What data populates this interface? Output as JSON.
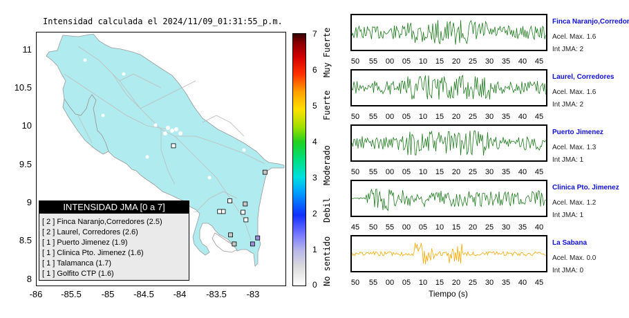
{
  "map": {
    "title": "Intensidad calculada el 2024/11/09_01:31:55_p.m.",
    "y_ticks": [
      "11",
      "10.5",
      "10",
      "9.5",
      "9",
      "8.5",
      "8"
    ],
    "x_ticks": [
      "-86",
      "-85.5",
      "-85",
      "-84.5",
      "-84",
      "-83.5",
      "-83"
    ],
    "land_color": "#b0ecef",
    "legend": {
      "title": "INTENSIDAD JMA [0 a 7]",
      "items": [
        "[ 2 ] Finca Naranjo,Corredores (2.5)",
        "[ 2 ] Laurel, Corredores (2.6)",
        "[ 1 ] Puerto Jimenez (1.9)",
        "[ 1 ] Clinica Pto. Jimenez (1.6)",
        "[ 1 ] Talamanca (1.7)",
        "[ 1 ] Golfito CTP (1.6)"
      ]
    },
    "stations": [
      {
        "lon": -83.05,
        "lat": 8.55,
        "int": 2
      },
      {
        "lon": -82.98,
        "lat": 8.63,
        "int": 2
      },
      {
        "lon": -83.3,
        "lat": 8.55,
        "int": 1
      },
      {
        "lon": -83.35,
        "lat": 8.67,
        "int": 1
      },
      {
        "lon": -82.88,
        "lat": 9.5,
        "int": 1
      },
      {
        "lon": -83.15,
        "lat": 9.08,
        "int": 1
      },
      {
        "lon": -83.45,
        "lat": 8.98,
        "int": 0
      },
      {
        "lon": -83.5,
        "lat": 8.98,
        "int": 0
      },
      {
        "lon": -83.18,
        "lat": 8.97,
        "int": 0
      },
      {
        "lon": -83.14,
        "lat": 8.87,
        "int": 0
      },
      {
        "lon": -83.36,
        "lat": 9.12,
        "int": 0
      },
      {
        "lon": -84.13,
        "lat": 9.85,
        "int": 0
      }
    ]
  },
  "colorbar": {
    "ticks": [
      "7",
      "6",
      "5",
      "4",
      "3",
      "2",
      "1",
      "0"
    ],
    "labels": [
      "Muy Fuerte",
      "Fuerte",
      "Moderado",
      "Debil",
      "No sentido"
    ]
  },
  "traces": {
    "xlabel": "Tiempo (s)",
    "panels": [
      {
        "name": "Finca Naranjo,Corredor",
        "acel": "Acel. Max. 1.6",
        "int": "Int JMA: 2",
        "color": "#1e7a1e",
        "ticks": [
          "50",
          "55",
          "00",
          "05",
          "10",
          "15",
          "20",
          "25",
          "30",
          "35",
          "40",
          "45"
        ]
      },
      {
        "name": "Laurel, Corredores",
        "acel": "Acel. Max. 1.6",
        "int": "Int JMA: 2",
        "color": "#1e7a1e",
        "ticks": [
          "50",
          "55",
          "00",
          "05",
          "10",
          "15",
          "20",
          "25",
          "30",
          "35",
          "40",
          "45"
        ]
      },
      {
        "name": "Puerto Jimenez",
        "acel": "Acel. Max. 1.3",
        "int": "Int JMA: 1",
        "color": "#1e7a1e",
        "ticks": [
          "50",
          "55",
          "00",
          "05",
          "10",
          "15",
          "20",
          "25",
          "30",
          "35",
          "40",
          "45"
        ]
      },
      {
        "name": "Clinica Pto. Jimenez",
        "acel": "Acel. Max. 1.2",
        "int": "Int JMA: 1",
        "color": "#1e7a1e",
        "ticks": [
          "45",
          "50",
          "55",
          "00",
          "05",
          "10",
          "15",
          "20",
          "25",
          "30",
          "35",
          "40"
        ]
      },
      {
        "name": "La Sabana",
        "acel": "Acel. Max. 0.0",
        "int": "Int JMA: 0",
        "color": "#f5a800",
        "ticks": [
          "50",
          "55",
          "00",
          "05",
          "10",
          "15",
          "20",
          "25",
          "30",
          "35",
          "40",
          "45"
        ]
      }
    ]
  }
}
